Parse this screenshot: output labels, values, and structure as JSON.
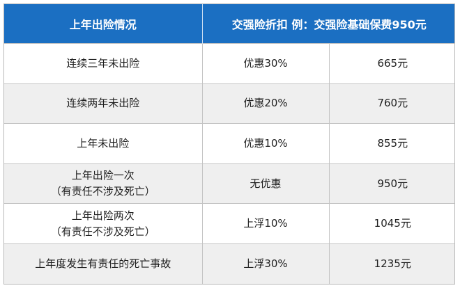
{
  "table": {
    "header": {
      "situation": "上年出险情况",
      "discount": "交强险折扣  例：交强险基础保费950元"
    },
    "rows": [
      {
        "situation": [
          "连续三年未出险"
        ],
        "discount": "优惠30%",
        "premium": "665元"
      },
      {
        "situation": [
          "连续两年未出险"
        ],
        "discount": "优惠20%",
        "premium": "760元"
      },
      {
        "situation": [
          "上年未出险"
        ],
        "discount": "优惠10%",
        "premium": "855元"
      },
      {
        "situation": [
          "上年出险一次",
          "（有责任不涉及死亡）"
        ],
        "discount": "无优惠",
        "premium": "950元"
      },
      {
        "situation": [
          "上年出险两次",
          "（有责任不涉及死亡）"
        ],
        "discount": "上浮10%",
        "premium": "1045元"
      },
      {
        "situation": [
          "上年度发生有责任的死亡事故"
        ],
        "discount": "上浮30%",
        "premium": "1235元"
      }
    ]
  },
  "colors": {
    "header_bg": "#1b6fc2",
    "header_text": "#ffffff",
    "stripe_bg": "#efefef"
  }
}
